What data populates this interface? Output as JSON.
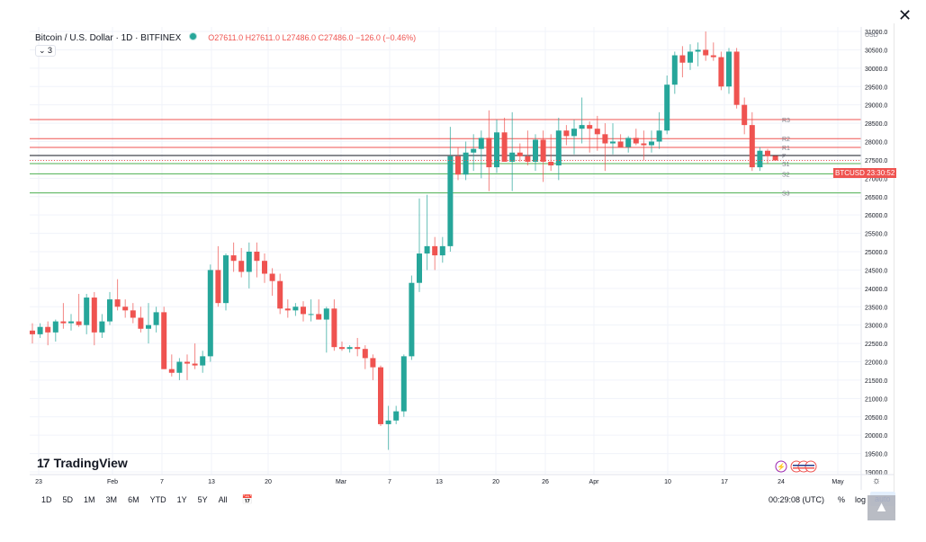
{
  "header": {
    "symbol": "Bitcoin / U.S. Dollar · 1D · BITFINEX",
    "ohlc": "O27611.0 H27611.0 L27486.0 C27486.0 −126.0 (−0.46%)",
    "indicator_toggle": "⌄ 3"
  },
  "close_icon": "close-icon",
  "logo_text": "TradingView",
  "price_axis": {
    "currency": "USD",
    "ticks": [
      "31000.0",
      "30500.0",
      "30000.0",
      "29500.0",
      "29000.0",
      "28500.0",
      "28000.0",
      "27500.0",
      "27000.0",
      "26500.0",
      "26000.0",
      "25500.0",
      "25000.0",
      "24500.0",
      "24000.0",
      "23500.0",
      "23000.0",
      "22500.0",
      "22000.0",
      "21500.0",
      "21000.0",
      "20500.0",
      "20000.0",
      "19500.0",
      "19000.0"
    ],
    "badge_label": "BTCUSD",
    "badge_time": "23:30:52"
  },
  "time_axis": {
    "labels": [
      "23",
      "Feb",
      "7",
      "13",
      "20",
      "Mar",
      "7",
      "13",
      "20",
      "26",
      "Apr",
      "10",
      "17",
      "24",
      "May"
    ]
  },
  "toolbar": {
    "ranges": [
      "1D",
      "5D",
      "1M",
      "3M",
      "6M",
      "YTD",
      "1Y",
      "5Y",
      "All"
    ],
    "clock": "00:29:08 (UTC)",
    "percent": "%",
    "log": "log",
    "auto": "auto"
  },
  "chart_data": {
    "type": "candlestick",
    "title": "Bitcoin / U.S. Dollar · 1D · BITFINEX",
    "ylim": [
      19000,
      31200
    ],
    "pivot_levels": [
      {
        "name": "R3",
        "value": 28600,
        "color": "#ef5350"
      },
      {
        "name": "R2",
        "value": 28080,
        "color": "#ef5350"
      },
      {
        "name": "R1",
        "value": 27840,
        "color": "#ef5350"
      },
      {
        "name": "Pivot",
        "value": 27620,
        "color": "#131722"
      },
      {
        "name": "S1",
        "value": 27400,
        "color": "#4caf50"
      },
      {
        "name": "S2",
        "value": 27120,
        "color": "#4caf50"
      },
      {
        "name": "S3",
        "value": 26600,
        "color": "#4caf50"
      }
    ],
    "ohlc": [
      [
        22850,
        23050,
        22500,
        22750
      ],
      [
        22750,
        23050,
        22650,
        22950
      ],
      [
        22950,
        23100,
        22450,
        22800
      ],
      [
        22800,
        23150,
        22550,
        23100
      ],
      [
        23100,
        23600,
        22900,
        23050
      ],
      [
        23050,
        23300,
        22850,
        23100
      ],
      [
        23100,
        23850,
        22950,
        23000
      ],
      [
        23000,
        23850,
        22750,
        23750
      ],
      [
        23750,
        23900,
        22450,
        22800
      ],
      [
        22800,
        23300,
        22650,
        23100
      ],
      [
        23100,
        23900,
        23000,
        23700
      ],
      [
        23700,
        24250,
        23400,
        23500
      ],
      [
        23500,
        23700,
        23200,
        23400
      ],
      [
        23400,
        23600,
        23050,
        23200
      ],
      [
        23200,
        23500,
        22800,
        22900
      ],
      [
        22900,
        23600,
        22500,
        23000
      ],
      [
        23000,
        23500,
        22800,
        23350
      ],
      [
        23350,
        23500,
        21800,
        21800
      ],
      [
        21800,
        22200,
        21600,
        21700
      ],
      [
        21700,
        22100,
        21500,
        22000
      ],
      [
        22000,
        22200,
        21500,
        21950
      ],
      [
        21950,
        22500,
        21800,
        21900
      ],
      [
        21900,
        22300,
        21700,
        22150
      ],
      [
        22150,
        24650,
        22000,
        24500
      ],
      [
        24500,
        25150,
        23500,
        23600
      ],
      [
        23600,
        24950,
        23400,
        24900
      ],
      [
        24900,
        25250,
        24450,
        24750
      ],
      [
        24750,
        25100,
        24300,
        24450
      ],
      [
        24450,
        25250,
        24000,
        25000
      ],
      [
        25000,
        25250,
        24300,
        24750
      ],
      [
        24750,
        24950,
        24150,
        24400
      ],
      [
        24400,
        24550,
        23800,
        24200
      ],
      [
        24200,
        24400,
        23300,
        23450
      ],
      [
        23450,
        23700,
        23200,
        23400
      ],
      [
        23400,
        23600,
        23250,
        23500
      ],
      [
        23500,
        23650,
        23100,
        23300
      ],
      [
        23300,
        23700,
        23100,
        23300
      ],
      [
        23300,
        23700,
        23150,
        23150
      ],
      [
        23150,
        23500,
        22250,
        23450
      ],
      [
        23450,
        23700,
        22300,
        22400
      ],
      [
        22400,
        22550,
        22300,
        22350
      ],
      [
        22350,
        22450,
        22250,
        22400
      ],
      [
        22400,
        22650,
        22150,
        22350
      ],
      [
        22350,
        22450,
        21800,
        22100
      ],
      [
        22100,
        22200,
        21500,
        21850
      ],
      [
        21850,
        21900,
        20250,
        20300
      ],
      [
        20300,
        20800,
        19600,
        20400
      ],
      [
        20400,
        20800,
        20300,
        20650
      ],
      [
        20650,
        22200,
        20500,
        22150
      ],
      [
        22150,
        24350,
        22050,
        24150
      ],
      [
        24150,
        26450,
        23900,
        24950
      ],
      [
        24950,
        26550,
        24500,
        25150
      ],
      [
        25150,
        25400,
        24500,
        24900
      ],
      [
        24900,
        25400,
        24700,
        25150
      ],
      [
        25150,
        28400,
        25000,
        27600
      ],
      [
        27600,
        27850,
        26950,
        27100
      ],
      [
        27100,
        28000,
        26950,
        27700
      ],
      [
        27700,
        28200,
        27200,
        27800
      ],
      [
        27800,
        28300,
        27000,
        28100
      ],
      [
        28100,
        28850,
        26650,
        27300
      ],
      [
        27300,
        28600,
        27150,
        28250
      ],
      [
        28250,
        28650,
        27550,
        27450
      ],
      [
        27450,
        28800,
        26650,
        27700
      ],
      [
        27700,
        27950,
        27450,
        27600
      ],
      [
        27600,
        28300,
        27350,
        27450
      ],
      [
        27450,
        28200,
        27200,
        28050
      ],
      [
        28050,
        28300,
        26900,
        27450
      ],
      [
        27450,
        28200,
        27200,
        27350
      ],
      [
        27350,
        28650,
        26950,
        28300
      ],
      [
        28300,
        28450,
        27900,
        28150
      ],
      [
        28150,
        28600,
        27650,
        28350
      ],
      [
        28350,
        29200,
        27950,
        28450
      ],
      [
        28450,
        28550,
        27700,
        28350
      ],
      [
        28350,
        28700,
        27750,
        28200
      ],
      [
        28200,
        28500,
        27200,
        27950
      ],
      [
        27950,
        28500,
        27650,
        28000
      ],
      [
        28000,
        28200,
        27950,
        27850
      ],
      [
        27850,
        28150,
        27700,
        28100
      ],
      [
        28100,
        28350,
        27900,
        27950
      ],
      [
        27950,
        28300,
        27500,
        27900
      ],
      [
        27900,
        28300,
        27700,
        28000
      ],
      [
        28000,
        28800,
        27800,
        28300
      ],
      [
        28300,
        29800,
        28200,
        29550
      ],
      [
        29550,
        30450,
        29300,
        30350
      ],
      [
        30350,
        30600,
        29750,
        30150
      ],
      [
        30150,
        30650,
        29950,
        30450
      ],
      [
        30450,
        30700,
        30050,
        30500
      ],
      [
        30500,
        31000,
        30200,
        30350
      ],
      [
        30350,
        30700,
        30200,
        30300
      ],
      [
        30300,
        30450,
        29400,
        29500
      ],
      [
        29500,
        30550,
        29300,
        30450
      ],
      [
        30450,
        30550,
        28900,
        29000
      ],
      [
        29000,
        29200,
        28200,
        28450
      ],
      [
        28450,
        28800,
        27200,
        27300
      ],
      [
        27300,
        27850,
        27200,
        27750
      ],
      [
        27750,
        27800,
        27400,
        27600
      ],
      [
        27611,
        27611,
        27486,
        27486
      ]
    ]
  }
}
